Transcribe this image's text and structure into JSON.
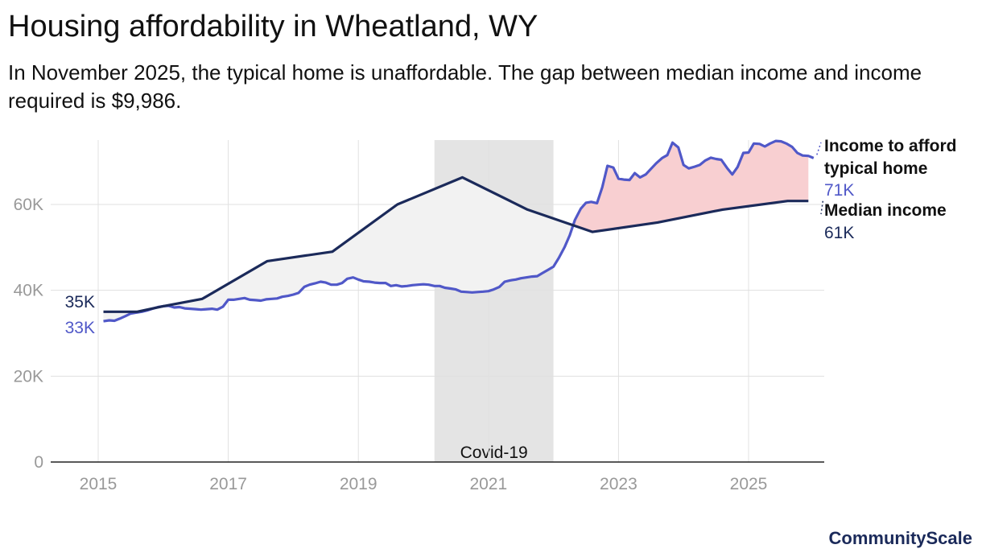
{
  "title": "Housing affordability in Wheatland, WY",
  "subtitle": "In November 2025, the typical home is unaffordable. The gap between median income and income required is $9,986.",
  "brand": "CommunityScale",
  "colors": {
    "median": "#1b2a5a",
    "required": "#5058c8",
    "gap_unaffordable": "#f8cfd1",
    "gap_affordable": "#f2f2f2",
    "covid_band": "#e4e4e4",
    "grid": "#e0e0e0",
    "axis": "#222222",
    "tick": "#999999"
  },
  "chart_data": {
    "type": "line",
    "title": "Housing affordability in Wheatland, WY",
    "xlabel": "",
    "ylabel": "",
    "xlim": [
      2014.6,
      2026.2
    ],
    "ylim": [
      0,
      75000
    ],
    "x_ticks": [
      2015,
      2017,
      2019,
      2021,
      2023,
      2025
    ],
    "x_tick_labels": [
      "2015",
      "2017",
      "2019",
      "2021",
      "2023",
      "2025"
    ],
    "y_ticks": [
      0,
      20000,
      40000,
      60000
    ],
    "y_tick_labels": [
      "0",
      "20K",
      "40K",
      "60K"
    ],
    "annotation": {
      "label": "Covid-19",
      "x_start": 2020.17,
      "x_end": 2022.0
    },
    "series": [
      {
        "name": "Median income",
        "label_start": "35K",
        "label_end": "61K",
        "end_title": "Median income",
        "points": [
          [
            2015.08,
            35000
          ],
          [
            2015.6,
            35000
          ],
          [
            2016.0,
            36300
          ],
          [
            2016.6,
            38000
          ],
          [
            2017.6,
            46800
          ],
          [
            2018.6,
            49000
          ],
          [
            2019.6,
            60000
          ],
          [
            2020.6,
            66300
          ],
          [
            2021.6,
            58800
          ],
          [
            2022.6,
            53600
          ],
          [
            2023.6,
            55800
          ],
          [
            2024.6,
            58800
          ],
          [
            2025.6,
            60800
          ],
          [
            2025.92,
            60800
          ]
        ]
      },
      {
        "name": "Income to afford typical home",
        "label_start": "33K",
        "label_end": "71K",
        "end_title": [
          "Income to afford",
          "typical home"
        ],
        "points": [
          [
            2015.08,
            32800
          ],
          [
            2015.17,
            33000
          ],
          [
            2015.25,
            32900
          ],
          [
            2015.33,
            33400
          ],
          [
            2015.42,
            34000
          ],
          [
            2015.5,
            34600
          ],
          [
            2015.58,
            34800
          ],
          [
            2015.67,
            35000
          ],
          [
            2015.75,
            35300
          ],
          [
            2015.83,
            35700
          ],
          [
            2015.92,
            36100
          ],
          [
            2016.0,
            36300
          ],
          [
            2016.08,
            36400
          ],
          [
            2016.17,
            36000
          ],
          [
            2016.25,
            36100
          ],
          [
            2016.33,
            35800
          ],
          [
            2016.42,
            35700
          ],
          [
            2016.5,
            35600
          ],
          [
            2016.58,
            35500
          ],
          [
            2016.67,
            35600
          ],
          [
            2016.75,
            35700
          ],
          [
            2016.83,
            35500
          ],
          [
            2016.92,
            36200
          ],
          [
            2017.0,
            37800
          ],
          [
            2017.08,
            37800
          ],
          [
            2017.17,
            38000
          ],
          [
            2017.25,
            38200
          ],
          [
            2017.33,
            37800
          ],
          [
            2017.42,
            37700
          ],
          [
            2017.5,
            37600
          ],
          [
            2017.58,
            37900
          ],
          [
            2017.67,
            38000
          ],
          [
            2017.75,
            38100
          ],
          [
            2017.83,
            38500
          ],
          [
            2017.92,
            38700
          ],
          [
            2018.0,
            39000
          ],
          [
            2018.08,
            39400
          ],
          [
            2018.17,
            40800
          ],
          [
            2018.25,
            41300
          ],
          [
            2018.33,
            41600
          ],
          [
            2018.42,
            42000
          ],
          [
            2018.5,
            41800
          ],
          [
            2018.58,
            41300
          ],
          [
            2018.67,
            41300
          ],
          [
            2018.75,
            41700
          ],
          [
            2018.83,
            42700
          ],
          [
            2018.92,
            43000
          ],
          [
            2019.0,
            42500
          ],
          [
            2019.08,
            42100
          ],
          [
            2019.17,
            42000
          ],
          [
            2019.25,
            41800
          ],
          [
            2019.33,
            41700
          ],
          [
            2019.42,
            41700
          ],
          [
            2019.5,
            41000
          ],
          [
            2019.58,
            41200
          ],
          [
            2019.67,
            40900
          ],
          [
            2019.75,
            41000
          ],
          [
            2019.83,
            41200
          ],
          [
            2019.92,
            41300
          ],
          [
            2020.0,
            41400
          ],
          [
            2020.08,
            41300
          ],
          [
            2020.17,
            41000
          ],
          [
            2020.25,
            41000
          ],
          [
            2020.33,
            40600
          ],
          [
            2020.42,
            40400
          ],
          [
            2020.5,
            40200
          ],
          [
            2020.58,
            39700
          ],
          [
            2020.67,
            39600
          ],
          [
            2020.75,
            39500
          ],
          [
            2020.83,
            39600
          ],
          [
            2020.92,
            39700
          ],
          [
            2021.0,
            39800
          ],
          [
            2021.08,
            40200
          ],
          [
            2021.17,
            40800
          ],
          [
            2021.25,
            42000
          ],
          [
            2021.33,
            42300
          ],
          [
            2021.42,
            42500
          ],
          [
            2021.5,
            42800
          ],
          [
            2021.58,
            43000
          ],
          [
            2021.67,
            43200
          ],
          [
            2021.75,
            43300
          ],
          [
            2021.83,
            44000
          ],
          [
            2021.92,
            44800
          ],
          [
            2022.0,
            45500
          ],
          [
            2022.08,
            47500
          ],
          [
            2022.17,
            50000
          ],
          [
            2022.25,
            52800
          ],
          [
            2022.33,
            56400
          ],
          [
            2022.42,
            59000
          ],
          [
            2022.5,
            60400
          ],
          [
            2022.58,
            60600
          ],
          [
            2022.67,
            60300
          ],
          [
            2022.75,
            64000
          ],
          [
            2022.83,
            69000
          ],
          [
            2022.92,
            68600
          ],
          [
            2023.0,
            66000
          ],
          [
            2023.08,
            65800
          ],
          [
            2023.17,
            65700
          ],
          [
            2023.25,
            67300
          ],
          [
            2023.33,
            66300
          ],
          [
            2023.42,
            67000
          ],
          [
            2023.5,
            68300
          ],
          [
            2023.58,
            69600
          ],
          [
            2023.67,
            70800
          ],
          [
            2023.75,
            71500
          ],
          [
            2023.83,
            74400
          ],
          [
            2023.92,
            73300
          ],
          [
            2024.0,
            69200
          ],
          [
            2024.08,
            68400
          ],
          [
            2024.17,
            68800
          ],
          [
            2024.25,
            69200
          ],
          [
            2024.33,
            70200
          ],
          [
            2024.42,
            70900
          ],
          [
            2024.5,
            70600
          ],
          [
            2024.58,
            70400
          ],
          [
            2024.67,
            68500
          ],
          [
            2024.75,
            67000
          ],
          [
            2024.83,
            68700
          ],
          [
            2024.92,
            72000
          ],
          [
            2025.0,
            72100
          ],
          [
            2025.08,
            74200
          ],
          [
            2025.17,
            74100
          ],
          [
            2025.25,
            73500
          ],
          [
            2025.33,
            74200
          ],
          [
            2025.42,
            74800
          ],
          [
            2025.5,
            74700
          ],
          [
            2025.58,
            74200
          ],
          [
            2025.67,
            73400
          ],
          [
            2025.75,
            72000
          ],
          [
            2025.83,
            71400
          ],
          [
            2025.92,
            71300
          ],
          [
            2026.0,
            70800
          ]
        ]
      }
    ]
  }
}
